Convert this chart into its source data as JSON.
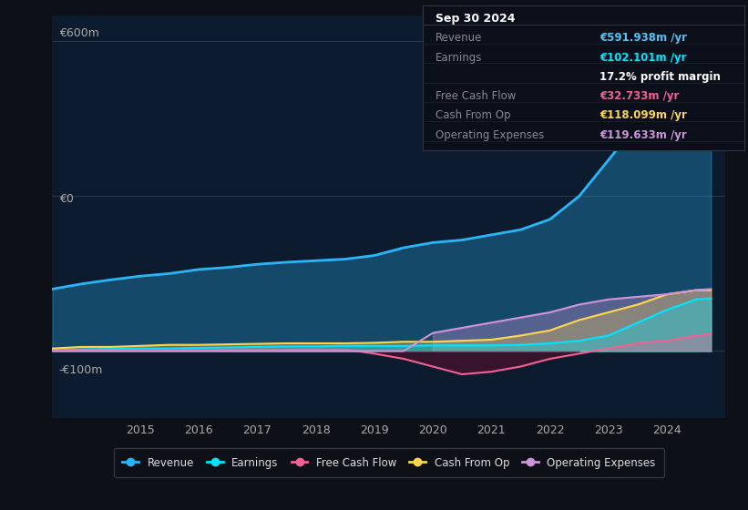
{
  "bg_color": "#0d1117",
  "plot_bg_color": "#0d1b2e",
  "title": "Sep 30 2024",
  "ylabel_600": "€600m",
  "ylabel_0": "€0",
  "ylabel_neg100": "-€100m",
  "info_box": {
    "date": "Sep 30 2024",
    "rows": [
      {
        "label": "Revenue",
        "value": "€591.938m /yr",
        "color": "#4fc3f7"
      },
      {
        "label": "Earnings",
        "value": "€102.101m /yr",
        "color": "#00e5ff"
      },
      {
        "label": "margin",
        "value": "17.2% profit margin",
        "color": "#ffffff"
      },
      {
        "label": "Free Cash Flow",
        "value": "€32.733m /yr",
        "color": "#f06292"
      },
      {
        "label": "Cash From Op",
        "value": "€118.099m /yr",
        "color": "#ffd54f"
      },
      {
        "label": "Operating Expenses",
        "value": "€119.633m /yr",
        "color": "#ce93d8"
      }
    ]
  },
  "years": [
    2013.5,
    2014,
    2014.5,
    2015,
    2015.5,
    2016,
    2016.5,
    2017,
    2017.5,
    2018,
    2018.5,
    2019,
    2019.5,
    2020,
    2020.5,
    2021,
    2021.5,
    2022,
    2022.5,
    2023,
    2023.5,
    2024,
    2024.5,
    2024.75
  ],
  "revenue": [
    120,
    130,
    138,
    145,
    150,
    158,
    162,
    168,
    172,
    175,
    178,
    185,
    200,
    210,
    215,
    225,
    235,
    255,
    300,
    370,
    440,
    530,
    590,
    592
  ],
  "earnings": [
    2,
    3,
    4,
    5,
    5,
    6,
    7,
    8,
    9,
    9,
    10,
    10,
    10,
    11,
    11,
    11,
    12,
    15,
    20,
    30,
    55,
    80,
    100,
    102
  ],
  "free_cash_flow": [
    2,
    1,
    1,
    2,
    2,
    2,
    3,
    3,
    3,
    3,
    3,
    -5,
    -15,
    -30,
    -45,
    -40,
    -30,
    -15,
    -5,
    5,
    15,
    20,
    30,
    33
  ],
  "cash_from_op": [
    5,
    8,
    8,
    10,
    12,
    12,
    13,
    14,
    15,
    15,
    15,
    16,
    18,
    18,
    20,
    22,
    30,
    40,
    60,
    75,
    90,
    110,
    118,
    118
  ],
  "operating_expenses": [
    0,
    0,
    0,
    0,
    0,
    0,
    0,
    0,
    0,
    0,
    0,
    0,
    0,
    35,
    45,
    55,
    65,
    75,
    90,
    100,
    105,
    110,
    118,
    120
  ],
  "revenue_color": "#29b6f6",
  "earnings_color": "#00e5ff",
  "fcf_color": "#f06292",
  "cashop_color": "#ffd54f",
  "opex_color": "#ce93d8",
  "xlim": [
    2013.5,
    2025
  ],
  "ylim": [
    -130,
    650
  ],
  "xticks": [
    2015,
    2016,
    2017,
    2018,
    2019,
    2020,
    2021,
    2022,
    2023,
    2024
  ],
  "legend_items": [
    "Revenue",
    "Earnings",
    "Free Cash Flow",
    "Cash From Op",
    "Operating Expenses"
  ],
  "legend_colors": [
    "#29b6f6",
    "#00e5ff",
    "#f06292",
    "#ffd54f",
    "#ce93d8"
  ]
}
